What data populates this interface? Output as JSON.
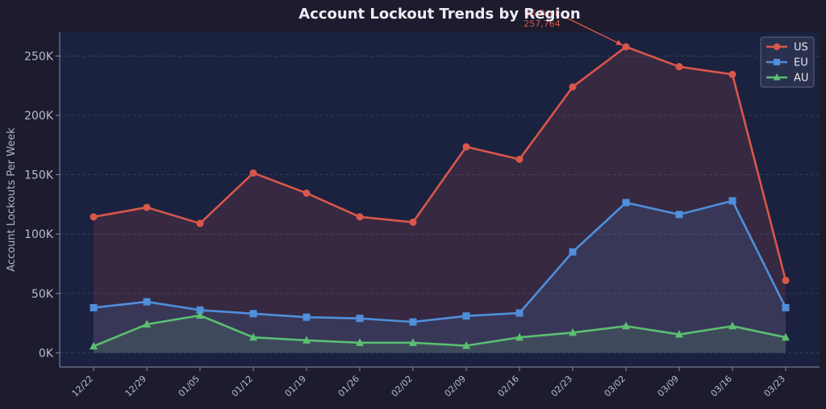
{
  "chart_data": {
    "type": "line",
    "title": "Account Lockout Trends by Region",
    "xlabel": "",
    "ylabel": "Account Lockouts Per Week",
    "categories": [
      "12/22",
      "12/29",
      "01/05",
      "01/12",
      "01/19",
      "01/26",
      "02/02",
      "02/09",
      "02/16",
      "02/23",
      "03/02",
      "03/09",
      "03/16",
      "03/23"
    ],
    "ylim": [
      -12000,
      270000
    ],
    "yticks": [
      0,
      50000,
      100000,
      150000,
      200000,
      250000
    ],
    "ytick_labels": [
      "0K",
      "50K",
      "100K",
      "150K",
      "200K",
      "250K"
    ],
    "grid": true,
    "legend_position": "top-right",
    "series": [
      {
        "name": "US",
        "color": "#d9574a",
        "marker": "circle",
        "values": [
          114500,
          122500,
          109000,
          151500,
          134500,
          114500,
          110000,
          173500,
          163000,
          224000,
          257764,
          241000,
          234500,
          61000
        ]
      },
      {
        "name": "EU",
        "color": "#4f8fdb",
        "marker": "square",
        "values": [
          38000,
          43000,
          36000,
          33000,
          30000,
          29000,
          26000,
          31000,
          33500,
          85000,
          126500,
          116500,
          128000,
          38000
        ]
      },
      {
        "name": "AU",
        "color": "#5bbf72",
        "marker": "triangle",
        "values": [
          5500,
          24000,
          31500,
          13000,
          10500,
          8500,
          8500,
          6000,
          13000,
          17000,
          22500,
          15500,
          22500,
          13000
        ]
      }
    ],
    "annotation": {
      "label": "US Peak",
      "value_text": "257,764",
      "series": "US",
      "category": "03/02",
      "color": "#d9574a"
    }
  }
}
